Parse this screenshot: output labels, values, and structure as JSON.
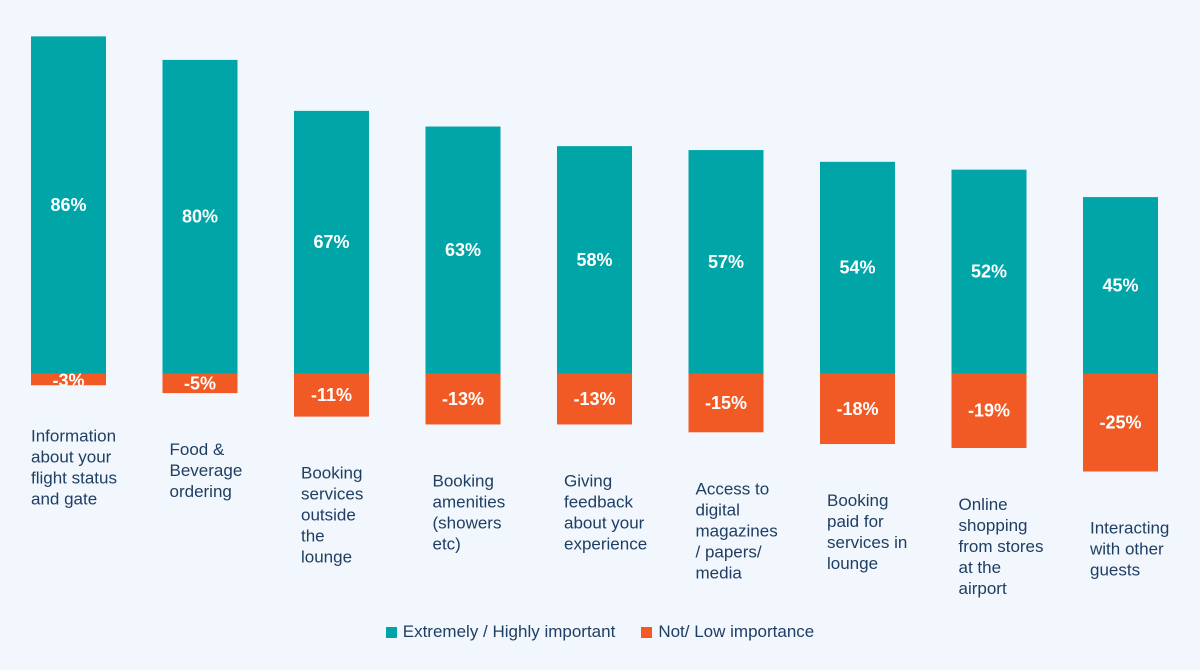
{
  "colors": {
    "important": "#00a5a8",
    "not_important": "#f15a24",
    "text": "#1f3e63",
    "background": "#f1f7fd"
  },
  "legend": {
    "important_label": "Extremely / Highly important",
    "not_important_label": "Not/ Low importance"
  },
  "chart_data": {
    "type": "bar",
    "stacked": "diverging",
    "categories": [
      [
        "Information",
        "about your",
        "flight status",
        "and gate"
      ],
      [
        "Food &",
        "Beverage",
        "ordering"
      ],
      [
        "Booking",
        "services",
        "outside",
        "the",
        "lounge"
      ],
      [
        "Booking",
        "amenities",
        "(showers",
        "etc)"
      ],
      [
        "Giving",
        "feedback",
        "about your",
        "experience"
      ],
      [
        "Access to",
        "digital",
        "magazines",
        "/ papers/",
        "media"
      ],
      [
        "Booking",
        "paid for",
        "services in",
        "lounge"
      ],
      [
        "Online",
        "shopping",
        "from stores",
        "at the",
        "airport"
      ],
      [
        "Interacting",
        "with other",
        "guests"
      ]
    ],
    "series": [
      {
        "name": "Extremely / Highly important",
        "values": [
          86,
          80,
          67,
          63,
          58,
          57,
          54,
          52,
          45
        ],
        "labels": [
          "86%",
          "80%",
          "67%",
          "63%",
          "58%",
          "57%",
          "54%",
          "52%",
          "45%"
        ]
      },
      {
        "name": "Not/ Low importance",
        "values": [
          -3,
          -5,
          -11,
          -13,
          -13,
          -15,
          -18,
          -19,
          -25
        ],
        "labels": [
          "-3%",
          "-5%",
          "-11%",
          "-13%",
          "-13%",
          "-15%",
          "-18%",
          "-19%",
          "-25%"
        ]
      }
    ],
    "ylim": [
      -25,
      86
    ],
    "grid": false,
    "legend_position": "bottom"
  }
}
